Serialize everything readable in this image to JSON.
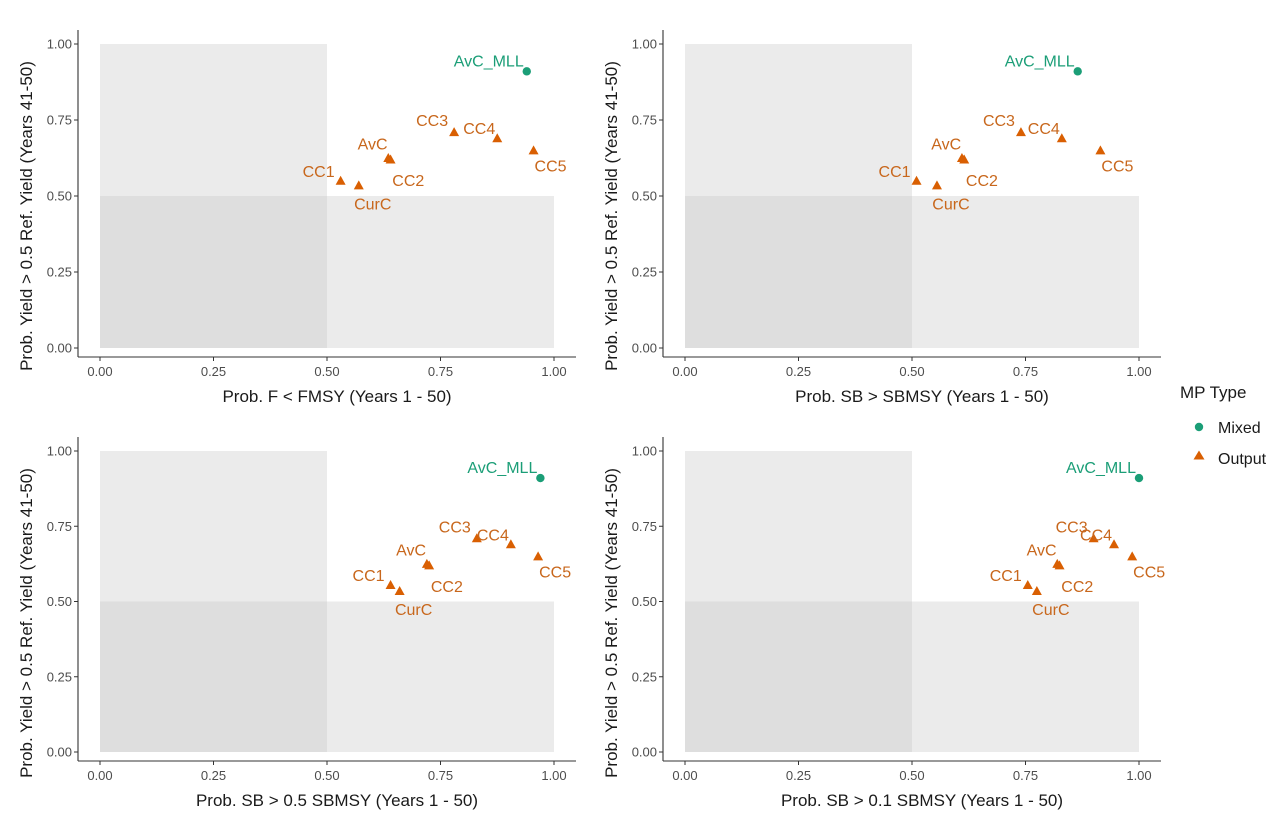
{
  "colors": {
    "mixed": "#1b9e77",
    "output": "#d95f02",
    "output_text": "#c8671c",
    "zone_light": "#ebebeb",
    "zone_dark": "#dedede",
    "axis": "#333333"
  },
  "legend": {
    "title": "MP Type",
    "placement": "right",
    "items": [
      {
        "label": "Mixed",
        "shape": "circle",
        "color_key": "mixed"
      },
      {
        "label": "Output",
        "shape": "triangle",
        "color_key": "output"
      }
    ]
  },
  "chart_data": [
    {
      "type": "scatter",
      "xlabel": "Prob. F < FMSY (Years 1 - 50)",
      "ylabel": "Prob. Yield > 0.5 Ref. Yield (Years 41-50)",
      "xlim": [
        0,
        1
      ],
      "ylim": [
        0,
        1
      ],
      "x_ticks": [
        "0.00",
        "0.25",
        "0.50",
        "0.75",
        "1.00"
      ],
      "y_ticks": [
        "0.00",
        "0.25",
        "0.50",
        "0.75",
        "1.00"
      ],
      "grid": false,
      "points": [
        {
          "label": "AvC_MLL",
          "x": 0.94,
          "y": 0.91,
          "type": "Mixed"
        },
        {
          "label": "CC1",
          "x": 0.53,
          "y": 0.55,
          "type": "Output"
        },
        {
          "label": "CurC",
          "x": 0.57,
          "y": 0.535,
          "type": "Output"
        },
        {
          "label": "AvC",
          "x": 0.64,
          "y": 0.62,
          "type": "Output"
        },
        {
          "label": "CC2",
          "x": 0.635,
          "y": 0.625,
          "type": "Output"
        },
        {
          "label": "CC3",
          "x": 0.78,
          "y": 0.71,
          "type": "Output"
        },
        {
          "label": "CC4",
          "x": 0.875,
          "y": 0.69,
          "type": "Output"
        },
        {
          "label": "CC5",
          "x": 0.955,
          "y": 0.65,
          "type": "Output"
        }
      ]
    },
    {
      "type": "scatter",
      "xlabel": "Prob. SB > SBMSY (Years 1 - 50)",
      "ylabel": "Prob. Yield > 0.5 Ref. Yield (Years 41-50)",
      "xlim": [
        0,
        1
      ],
      "ylim": [
        0,
        1
      ],
      "x_ticks": [
        "0.00",
        "0.25",
        "0.50",
        "0.75",
        "1.00"
      ],
      "y_ticks": [
        "0.00",
        "0.25",
        "0.50",
        "0.75",
        "1.00"
      ],
      "grid": false,
      "points": [
        {
          "label": "AvC_MLL",
          "x": 0.865,
          "y": 0.91,
          "type": "Mixed"
        },
        {
          "label": "CC1",
          "x": 0.51,
          "y": 0.55,
          "type": "Output"
        },
        {
          "label": "CurC",
          "x": 0.555,
          "y": 0.535,
          "type": "Output"
        },
        {
          "label": "AvC",
          "x": 0.615,
          "y": 0.62,
          "type": "Output"
        },
        {
          "label": "CC2",
          "x": 0.61,
          "y": 0.625,
          "type": "Output"
        },
        {
          "label": "CC3",
          "x": 0.74,
          "y": 0.71,
          "type": "Output"
        },
        {
          "label": "CC4",
          "x": 0.83,
          "y": 0.69,
          "type": "Output"
        },
        {
          "label": "CC5",
          "x": 0.915,
          "y": 0.65,
          "type": "Output"
        }
      ]
    },
    {
      "type": "scatter",
      "xlabel": "Prob. SB > 0.5 SBMSY (Years 1 - 50)",
      "ylabel": "Prob. Yield > 0.5 Ref. Yield (Years 41-50)",
      "xlim": [
        0,
        1
      ],
      "ylim": [
        0,
        1
      ],
      "x_ticks": [
        "0.00",
        "0.25",
        "0.50",
        "0.75",
        "1.00"
      ],
      "y_ticks": [
        "0.00",
        "0.25",
        "0.50",
        "0.75",
        "1.00"
      ],
      "grid": false,
      "points": [
        {
          "label": "AvC_MLL",
          "x": 0.97,
          "y": 0.91,
          "type": "Mixed"
        },
        {
          "label": "CC1",
          "x": 0.64,
          "y": 0.555,
          "type": "Output"
        },
        {
          "label": "CurC",
          "x": 0.66,
          "y": 0.535,
          "type": "Output"
        },
        {
          "label": "AvC",
          "x": 0.725,
          "y": 0.62,
          "type": "Output"
        },
        {
          "label": "CC2",
          "x": 0.72,
          "y": 0.625,
          "type": "Output"
        },
        {
          "label": "CC3",
          "x": 0.83,
          "y": 0.71,
          "type": "Output"
        },
        {
          "label": "CC4",
          "x": 0.905,
          "y": 0.69,
          "type": "Output"
        },
        {
          "label": "CC5",
          "x": 0.965,
          "y": 0.65,
          "type": "Output"
        }
      ]
    },
    {
      "type": "scatter",
      "xlabel": "Prob. SB > 0.1 SBMSY (Years 1 - 50)",
      "ylabel": "Prob. Yield > 0.5 Ref. Yield (Years 41-50)",
      "xlim": [
        0,
        1
      ],
      "ylim": [
        0,
        1
      ],
      "x_ticks": [
        "0.00",
        "0.25",
        "0.50",
        "0.75",
        "1.00"
      ],
      "y_ticks": [
        "0.00",
        "0.25",
        "0.50",
        "0.75",
        "1.00"
      ],
      "grid": false,
      "points": [
        {
          "label": "AvC_MLL",
          "x": 1.0,
          "y": 0.91,
          "type": "Mixed"
        },
        {
          "label": "CC1",
          "x": 0.755,
          "y": 0.555,
          "type": "Output"
        },
        {
          "label": "CurC",
          "x": 0.775,
          "y": 0.535,
          "type": "Output"
        },
        {
          "label": "AvC",
          "x": 0.825,
          "y": 0.62,
          "type": "Output"
        },
        {
          "label": "CC2",
          "x": 0.82,
          "y": 0.625,
          "type": "Output"
        },
        {
          "label": "CC3",
          "x": 0.9,
          "y": 0.71,
          "type": "Output"
        },
        {
          "label": "CC4",
          "x": 0.945,
          "y": 0.69,
          "type": "Output"
        },
        {
          "label": "CC5",
          "x": 0.985,
          "y": 0.65,
          "type": "Output"
        }
      ]
    }
  ]
}
